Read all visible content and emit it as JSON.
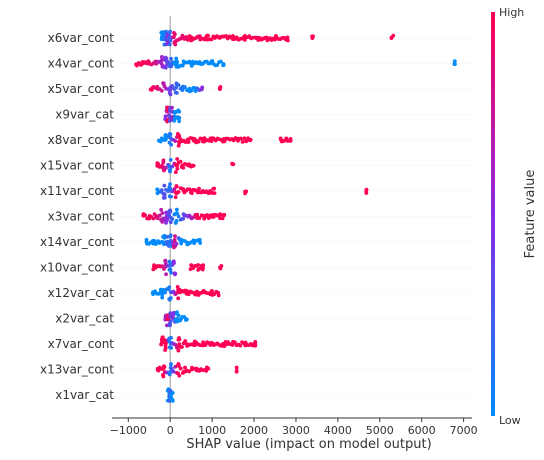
{
  "chart_data": {
    "type": "scatter",
    "subtype": "shap-beeswarm",
    "xlabel": "SHAP value (impact on model output)",
    "x_ticks": [
      -1000,
      0,
      1000,
      2000,
      3000,
      4000,
      5000,
      6000,
      7000
    ],
    "xlim": [
      -1150,
      7200
    ],
    "zero_line": true,
    "grid": false,
    "colorbar": {
      "title": "Feature value",
      "high_label": "High",
      "low_label": "Low",
      "high_color": "#ff0052",
      "mid_color": "#8a2be2",
      "low_color": "#008bfb",
      "placement": "right"
    },
    "features": [
      {
        "name": "x6var_cont",
        "points": [
          {
            "x": -200,
            "f": 0.0
          },
          {
            "x": -120,
            "f": 0.1
          },
          {
            "x": -80,
            "f": 0.3
          },
          {
            "x": -40,
            "f": 0.5
          },
          {
            "x": 0,
            "f": 0.2
          },
          {
            "x": 100,
            "f": 0.9
          },
          {
            "x": 300,
            "f": 0.9
          },
          {
            "x": 500,
            "f": 1.0
          },
          {
            "x": 700,
            "f": 0.95
          },
          {
            "x": 900,
            "f": 1.0
          },
          {
            "x": 1200,
            "f": 1.0
          },
          {
            "x": 1500,
            "f": 1.0
          },
          {
            "x": 1800,
            "f": 1.0
          },
          {
            "x": 2100,
            "f": 1.0
          },
          {
            "x": 2300,
            "f": 1.0
          },
          {
            "x": 2500,
            "f": 1.0
          },
          {
            "x": 2800,
            "f": 1.0
          },
          {
            "x": 3400,
            "f": 1.0
          },
          {
            "x": 5300,
            "f": 1.0
          }
        ]
      },
      {
        "name": "x4var_cont",
        "points": [
          {
            "x": -800,
            "f": 1.0
          },
          {
            "x": -650,
            "f": 1.0
          },
          {
            "x": -500,
            "f": 0.95
          },
          {
            "x": -350,
            "f": 0.8
          },
          {
            "x": -200,
            "f": 0.6
          },
          {
            "x": -100,
            "f": 0.4
          },
          {
            "x": 0,
            "f": 0.2
          },
          {
            "x": 150,
            "f": 0.0
          },
          {
            "x": 300,
            "f": 0.0
          },
          {
            "x": 500,
            "f": 0.0
          },
          {
            "x": 700,
            "f": 0.0
          },
          {
            "x": 1000,
            "f": 0.0
          },
          {
            "x": 1250,
            "f": 0.0
          },
          {
            "x": 6800,
            "f": 0.0
          }
        ]
      },
      {
        "name": "x5var_cont",
        "points": [
          {
            "x": -450,
            "f": 1.0
          },
          {
            "x": -300,
            "f": 0.9
          },
          {
            "x": -150,
            "f": 0.7
          },
          {
            "x": 0,
            "f": 0.4
          },
          {
            "x": 150,
            "f": 0.2
          },
          {
            "x": 300,
            "f": 0.1
          },
          {
            "x": 450,
            "f": 0.0
          },
          {
            "x": 600,
            "f": 0.0
          },
          {
            "x": 750,
            "f": 0.5
          },
          {
            "x": 1200,
            "f": 1.0
          }
        ]
      },
      {
        "name": "x9var_cat",
        "points": [
          {
            "x": -100,
            "f": 0.5
          },
          {
            "x": -50,
            "f": 1.0
          },
          {
            "x": 0,
            "f": 0.3
          },
          {
            "x": 60,
            "f": 0.6
          },
          {
            "x": 120,
            "f": 0.0
          },
          {
            "x": 200,
            "f": 0.0
          }
        ]
      },
      {
        "name": "x8var_cont",
        "points": [
          {
            "x": -250,
            "f": 0.0
          },
          {
            "x": -100,
            "f": 0.0
          },
          {
            "x": 0,
            "f": 0.1
          },
          {
            "x": 200,
            "f": 1.0
          },
          {
            "x": 400,
            "f": 1.0
          },
          {
            "x": 600,
            "f": 1.0
          },
          {
            "x": 800,
            "f": 1.0
          },
          {
            "x": 1000,
            "f": 1.0
          },
          {
            "x": 1300,
            "f": 1.0
          },
          {
            "x": 1600,
            "f": 1.0
          },
          {
            "x": 1900,
            "f": 1.0
          },
          {
            "x": 2650,
            "f": 1.0
          },
          {
            "x": 2850,
            "f": 1.0
          }
        ]
      },
      {
        "name": "x15var_cont",
        "points": [
          {
            "x": -300,
            "f": 1.0
          },
          {
            "x": -150,
            "f": 0.9
          },
          {
            "x": 0,
            "f": 0.1
          },
          {
            "x": 150,
            "f": 1.0
          },
          {
            "x": 300,
            "f": 1.0
          },
          {
            "x": 450,
            "f": 1.0
          },
          {
            "x": 550,
            "f": 1.0
          },
          {
            "x": 1500,
            "f": 1.0
          }
        ]
      },
      {
        "name": "x11var_cont",
        "points": [
          {
            "x": -300,
            "f": 0.0
          },
          {
            "x": -150,
            "f": 0.3
          },
          {
            "x": 0,
            "f": 0.1
          },
          {
            "x": 150,
            "f": 1.0
          },
          {
            "x": 300,
            "f": 1.0
          },
          {
            "x": 500,
            "f": 1.0
          },
          {
            "x": 700,
            "f": 1.0
          },
          {
            "x": 900,
            "f": 1.0
          },
          {
            "x": 1050,
            "f": 1.0
          },
          {
            "x": 1800,
            "f": 1.0
          },
          {
            "x": 4700,
            "f": 1.0
          }
        ]
      },
      {
        "name": "x3var_cont",
        "points": [
          {
            "x": -650,
            "f": 1.0
          },
          {
            "x": -500,
            "f": 1.0
          },
          {
            "x": -350,
            "f": 0.9
          },
          {
            "x": -200,
            "f": 0.7
          },
          {
            "x": -80,
            "f": 0.5
          },
          {
            "x": 0,
            "f": 0.3
          },
          {
            "x": 150,
            "f": 0.0
          },
          {
            "x": 300,
            "f": 0.3
          },
          {
            "x": 500,
            "f": 0.6
          },
          {
            "x": 650,
            "f": 1.0
          },
          {
            "x": 800,
            "f": 1.0
          },
          {
            "x": 1000,
            "f": 1.0
          },
          {
            "x": 1200,
            "f": 1.0
          },
          {
            "x": 1300,
            "f": 1.0
          }
        ]
      },
      {
        "name": "x14var_cont",
        "points": [
          {
            "x": -550,
            "f": 0.0
          },
          {
            "x": -420,
            "f": 0.0
          },
          {
            "x": -300,
            "f": 0.0
          },
          {
            "x": -150,
            "f": 0.0
          },
          {
            "x": -50,
            "f": 0.2
          },
          {
            "x": 0,
            "f": 0.1
          },
          {
            "x": 100,
            "f": 0.8
          },
          {
            "x": 250,
            "f": 0.0
          },
          {
            "x": 400,
            "f": 0.0
          },
          {
            "x": 550,
            "f": 0.0
          },
          {
            "x": 700,
            "f": 0.0
          }
        ]
      },
      {
        "name": "x10var_cont",
        "points": [
          {
            "x": -400,
            "f": 1.0
          },
          {
            "x": -250,
            "f": 1.0
          },
          {
            "x": -100,
            "f": 0.7
          },
          {
            "x": 0,
            "f": 0.1
          },
          {
            "x": 100,
            "f": 0.5
          },
          {
            "x": 500,
            "f": 1.0
          },
          {
            "x": 650,
            "f": 1.0
          },
          {
            "x": 800,
            "f": 1.0
          },
          {
            "x": 1200,
            "f": 1.0
          }
        ]
      },
      {
        "name": "x12var_cat",
        "points": [
          {
            "x": -400,
            "f": 0.0
          },
          {
            "x": -200,
            "f": 0.0
          },
          {
            "x": 0,
            "f": 0.1
          },
          {
            "x": 200,
            "f": 1.0
          },
          {
            "x": 400,
            "f": 1.0
          },
          {
            "x": 600,
            "f": 1.0
          },
          {
            "x": 800,
            "f": 1.0
          },
          {
            "x": 1000,
            "f": 1.0
          },
          {
            "x": 1150,
            "f": 1.0
          }
        ]
      },
      {
        "name": "x2var_cat",
        "points": [
          {
            "x": -100,
            "f": 0.6
          },
          {
            "x": -50,
            "f": 1.0
          },
          {
            "x": 0,
            "f": 0.3
          },
          {
            "x": 80,
            "f": 0.5
          },
          {
            "x": 150,
            "f": 0.0
          },
          {
            "x": 250,
            "f": 0.0
          },
          {
            "x": 380,
            "f": 0.0
          }
        ]
      },
      {
        "name": "x7var_cont",
        "points": [
          {
            "x": -200,
            "f": 1.0
          },
          {
            "x": -100,
            "f": 1.0
          },
          {
            "x": 0,
            "f": 0.1
          },
          {
            "x": 200,
            "f": 1.0
          },
          {
            "x": 400,
            "f": 1.0
          },
          {
            "x": 600,
            "f": 1.0
          },
          {
            "x": 800,
            "f": 1.0
          },
          {
            "x": 1000,
            "f": 1.0
          },
          {
            "x": 1300,
            "f": 1.0
          },
          {
            "x": 1500,
            "f": 1.0
          },
          {
            "x": 1800,
            "f": 1.0
          },
          {
            "x": 2050,
            "f": 1.0
          }
        ]
      },
      {
        "name": "x13var_cont",
        "points": [
          {
            "x": -300,
            "f": 1.0
          },
          {
            "x": -150,
            "f": 1.0
          },
          {
            "x": 0,
            "f": 0.1
          },
          {
            "x": 200,
            "f": 1.0
          },
          {
            "x": 350,
            "f": 1.0
          },
          {
            "x": 500,
            "f": 1.0
          },
          {
            "x": 650,
            "f": 1.0
          },
          {
            "x": 900,
            "f": 1.0
          },
          {
            "x": 1600,
            "f": 1.0
          }
        ]
      },
      {
        "name": "x1var_cat",
        "points": [
          {
            "x": -40,
            "f": 0.0
          },
          {
            "x": 0,
            "f": 0.2
          },
          {
            "x": 40,
            "f": 0.0
          }
        ]
      }
    ]
  }
}
